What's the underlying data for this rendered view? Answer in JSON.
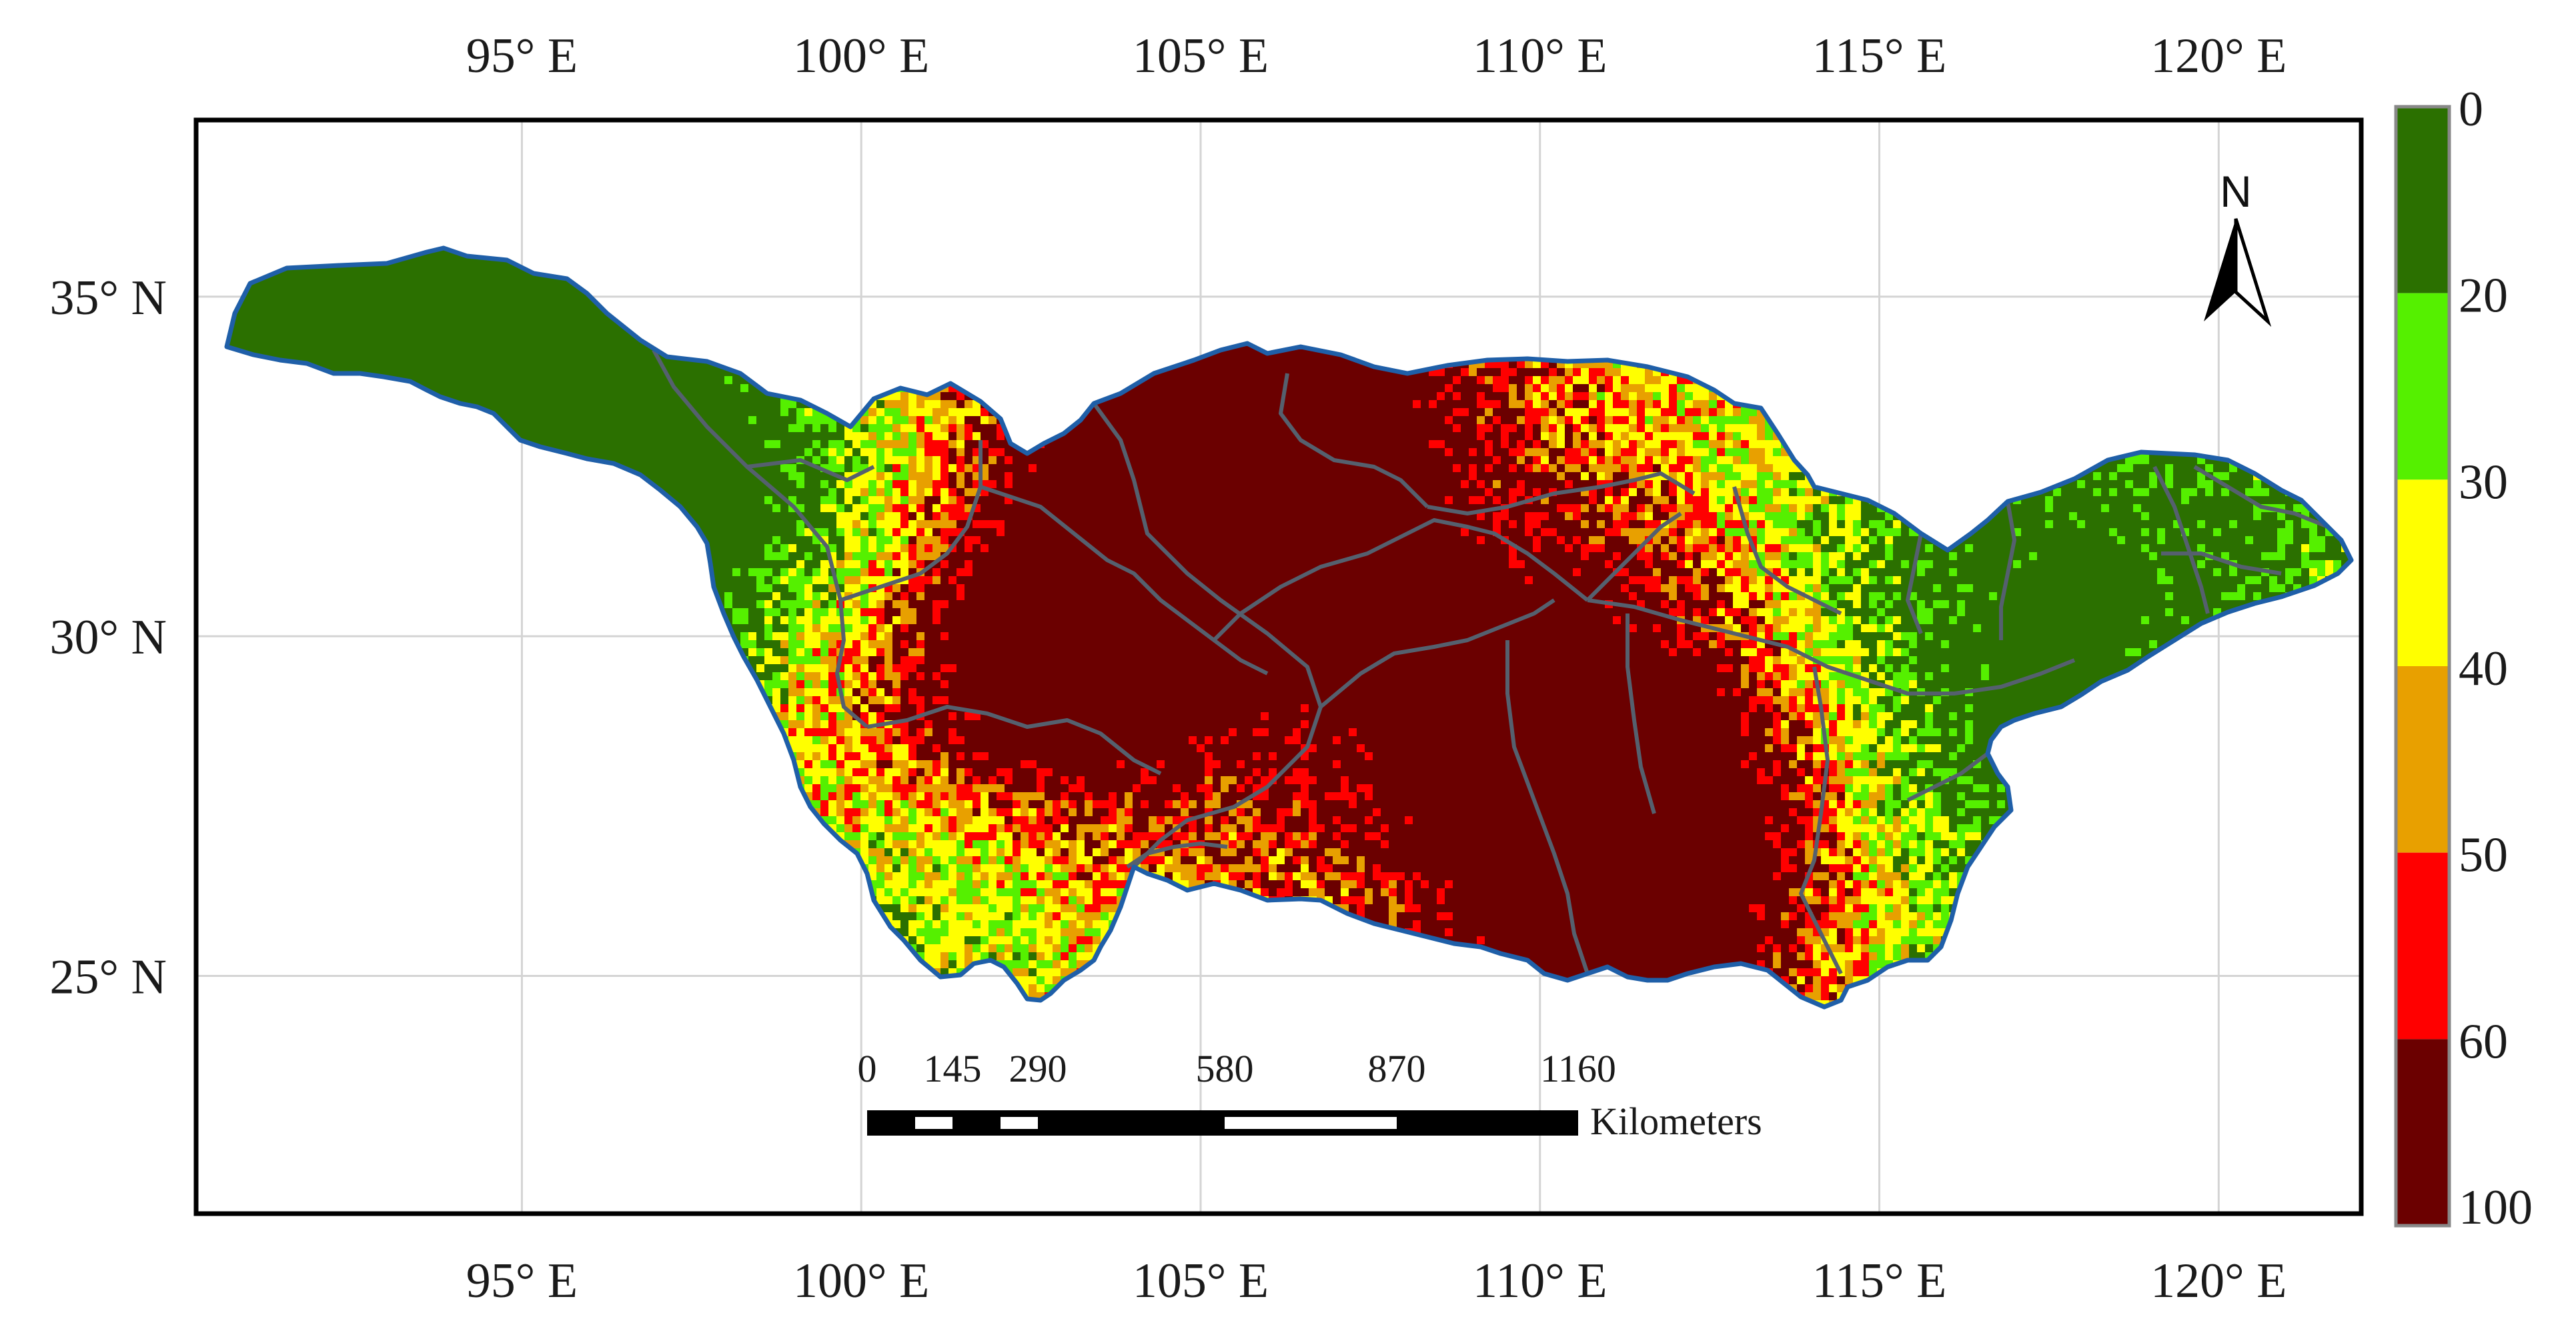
{
  "map": {
    "lon_ticks": [
      {
        "value": 95,
        "label": "95° E"
      },
      {
        "value": 100,
        "label": "100° E"
      },
      {
        "value": 105,
        "label": "105° E"
      },
      {
        "value": 110,
        "label": "110° E"
      },
      {
        "value": 115,
        "label": "115° E"
      },
      {
        "value": 120,
        "label": "120° E"
      }
    ],
    "lat_ticks": [
      {
        "value": 35,
        "label": "35° N"
      },
      {
        "value": 30,
        "label": "30° N"
      },
      {
        "value": 25,
        "label": "25° N"
      }
    ],
    "extent": {
      "lon": [
        90.2,
        122.1
      ],
      "lat": [
        21.5,
        37.6
      ]
    },
    "north_label": "N",
    "scale_bar": {
      "labels": [
        "0",
        "145",
        "290",
        "580",
        "870",
        "1160"
      ],
      "unit_label": "Kilometers"
    },
    "colors": {
      "boundary": "#1f5fa8",
      "subbasin": "#55606e",
      "graticule": "#d4d4d4"
    }
  },
  "legend": {
    "labels": [
      "0",
      "20",
      "30",
      "40",
      "50",
      "60",
      "100"
    ],
    "classes": [
      {
        "range": [
          0,
          20
        ],
        "color": "#2b7000"
      },
      {
        "range": [
          20,
          30
        ],
        "color": "#55f000"
      },
      {
        "range": [
          30,
          40
        ],
        "color": "#ffff00"
      },
      {
        "range": [
          40,
          50
        ],
        "color": "#e8a000"
      },
      {
        "range": [
          50,
          60
        ],
        "color": "#ff0000"
      },
      {
        "range": [
          60,
          100
        ],
        "color": "#6b0000"
      }
    ]
  }
}
